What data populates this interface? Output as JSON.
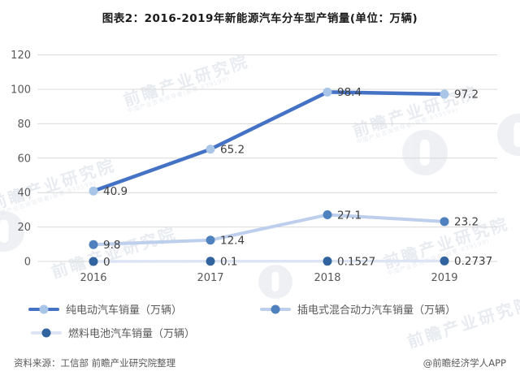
{
  "page": {
    "title": "图表2：2016-2019年新能源汽车分车型产销量(单位：万辆)"
  },
  "chart_data": {
    "type": "line",
    "title": "图表2：2016-2019年新能源汽车分车型产销量(单位：万辆)",
    "unit": "万辆",
    "categories": [
      "2016",
      "2017",
      "2018",
      "2019"
    ],
    "series": [
      {
        "name": "纯电动汽车销量（万辆）",
        "values": [
          40.9,
          65.2,
          98.4,
          97.2
        ],
        "labels": [
          "40.9",
          "65.2",
          "98.4",
          "97.2"
        ],
        "line_color": "#4472c4",
        "marker_color": "#a9c5e8"
      },
      {
        "name": "插电式混合动力汽车销量（万辆）",
        "values": [
          9.8,
          12.4,
          27.1,
          23.2
        ],
        "labels": [
          "9.8",
          "12.4",
          "27.1",
          "23.2"
        ],
        "line_color": "#bdcfec",
        "marker_color": "#4e81bd"
      },
      {
        "name": "燃料电池汽车销量（万辆）",
        "values": [
          0,
          0.1,
          0.1527,
          0.2737
        ],
        "labels": [
          "0",
          "0.1",
          "0.1527",
          "0.2737"
        ],
        "line_color": "#dde5f4",
        "marker_color": "#31639f"
      }
    ],
    "ylim": [
      0,
      120
    ],
    "yticks": [
      0,
      20,
      40,
      60,
      80,
      100,
      120
    ],
    "grid": true,
    "legend_position": "bottom",
    "xlabel": "",
    "ylabel": ""
  },
  "footer": {
    "source": "资料来源：工信部 前瞻产业研究院整理",
    "credit": "@前瞻经济学人APP"
  },
  "watermark": {
    "text": "前瞻产业研究院",
    "subtext": "中国产业咨询领导者(股票:839599)"
  },
  "colors": {
    "title": "#1a1a1a",
    "axis_text": "#595959",
    "label_text": "#3f3f3f",
    "grid": "#d9d9d9",
    "footer_text": "#595959",
    "watermark": "#c9d0dc"
  }
}
